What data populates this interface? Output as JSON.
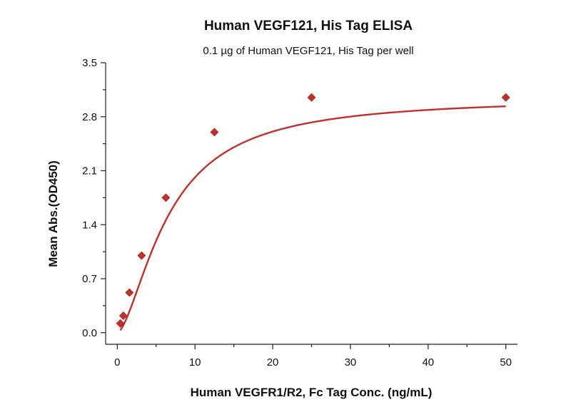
{
  "chart_data": {
    "type": "scatter",
    "title": "Human VEGF121, His Tag ELISA",
    "subtitle": "0.1 µg of Human VEGF121, His Tag per well",
    "xlabel": "Human VEGFR1/R2, Fc Tag Conc. (ng/mL)",
    "ylabel": "Mean Abs.(OD450)",
    "xlim": [
      -1.5,
      51.5
    ],
    "ylim": [
      -0.15,
      3.5
    ],
    "xticks": [
      0,
      10,
      20,
      30,
      40,
      50
    ],
    "xtick_labels": [
      "0",
      "10",
      "20",
      "30",
      "40",
      "50"
    ],
    "yticks": [
      0.0,
      0.7,
      1.4,
      2.1,
      2.8,
      3.5
    ],
    "ytick_labels": [
      "0.0",
      "0.7",
      "1.4",
      "2.1",
      "2.8",
      "3.5"
    ],
    "grid": false,
    "series": [
      {
        "x": [
          0.39,
          0.78,
          1.56,
          3.13,
          6.25,
          12.5,
          25,
          50
        ],
        "y": [
          0.12,
          0.22,
          0.52,
          1.0,
          1.75,
          2.6,
          3.05,
          3.05
        ],
        "color": "#c0312b",
        "marker": "diamond",
        "fit": "sigmoidal",
        "fit_params": {
          "bottom": 0.0,
          "top": 3.05,
          "ec50": 6.6,
          "hill": 1.6
        }
      }
    ]
  }
}
